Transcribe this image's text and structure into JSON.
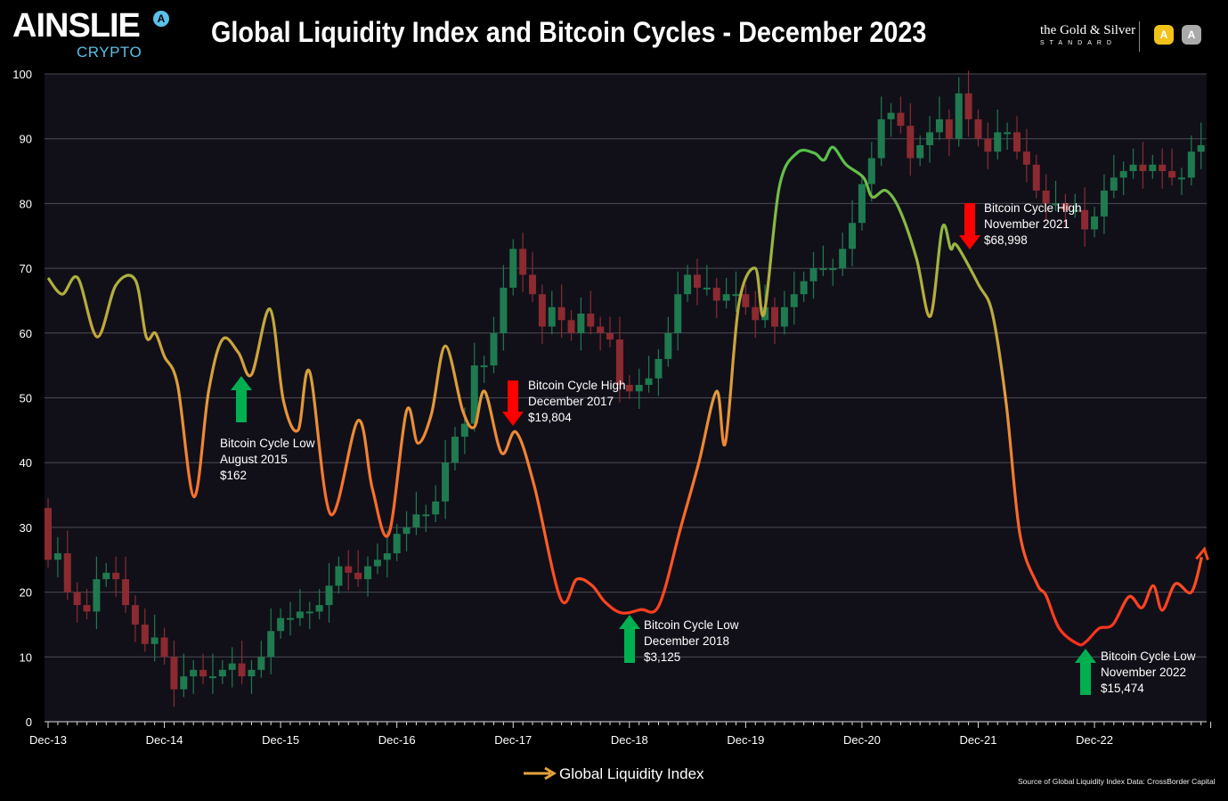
{
  "header": {
    "brand": "AINSLIE",
    "brand_sub": "CRYPTO",
    "brand_mark": "A",
    "title": "Global Liquidity Index and Bitcoin Cycles - December 2023",
    "partner_line1": "the Gold & Silver",
    "partner_line2": "STANDARD",
    "badge1": "A",
    "badge2": "A",
    "badge1_color": "#f2c21b",
    "badge2_color": "#aaaaaa"
  },
  "footer": {
    "source": "Source of Global Liquidity Index Data: CrossBorder Capital"
  },
  "chart_data": {
    "type": "line",
    "title": "Global Liquidity Index and Bitcoin Cycles - December 2023",
    "xlabel": "",
    "ylabel": "",
    "ylim": [
      0,
      100
    ],
    "yticks": [
      "0",
      "10",
      "20",
      "30",
      "40",
      "50",
      "60",
      "70",
      "80",
      "90",
      "100"
    ],
    "xticks": [
      "Dec-13",
      "Dec-14",
      "Dec-15",
      "Dec-16",
      "Dec-17",
      "Dec-18",
      "Dec-19",
      "Dec-20",
      "Dec-21",
      "Dec-22"
    ],
    "xlim": [
      "2013-12",
      "2023-12"
    ],
    "grid": true,
    "legend": {
      "position": "bottom",
      "label": "Global Liquidity Index"
    },
    "colors": {
      "high": "#5fbf4a",
      "mid": "#e6a23c",
      "low": "#ff3b1f",
      "candle_up": "#1f7a4f",
      "candle_down": "#8b2a30",
      "arrow_up": "#00b050",
      "arrow_down": "#ff0000",
      "plot_bg": "#111019"
    },
    "series": [
      {
        "name": "Global Liquidity Index",
        "points": [
          [
            "2013-12-01",
            68.5
          ],
          [
            "2014-01-15",
            66
          ],
          [
            "2014-03-03",
            68.5
          ],
          [
            "2014-05-03",
            59.4
          ],
          [
            "2014-07-01",
            67.4
          ],
          [
            "2014-09-01",
            68.2
          ],
          [
            "2014-10-05",
            59.4
          ],
          [
            "2014-11-03",
            60
          ],
          [
            "2014-12-01",
            56.4
          ],
          [
            "2015-01-12",
            52
          ],
          [
            "2015-03-03",
            34.7
          ],
          [
            "2015-04-18",
            51
          ],
          [
            "2015-06-01",
            59
          ],
          [
            "2015-07-20",
            57
          ],
          [
            "2015-09-01",
            53.6
          ],
          [
            "2015-10-28",
            63.7
          ],
          [
            "2015-12-10",
            49.5
          ],
          [
            "2016-01-25",
            45
          ],
          [
            "2016-03-01",
            54
          ],
          [
            "2016-05-06",
            32
          ],
          [
            "2016-08-01",
            46.5
          ],
          [
            "2016-09-15",
            36
          ],
          [
            "2016-11-06",
            29
          ],
          [
            "2017-01-01",
            48
          ],
          [
            "2017-02-06",
            43
          ],
          [
            "2017-03-18",
            47.5
          ],
          [
            "2017-05-01",
            58
          ],
          [
            "2017-06-25",
            48
          ],
          [
            "2017-08-01",
            45.5
          ],
          [
            "2017-09-03",
            51
          ],
          [
            "2017-10-25",
            41.5
          ],
          [
            "2017-12-10",
            44.7
          ],
          [
            "2018-02-06",
            36.5
          ],
          [
            "2018-04-28",
            19
          ],
          [
            "2018-06-18",
            22
          ],
          [
            "2018-08-06",
            21
          ],
          [
            "2018-09-15",
            18.5
          ],
          [
            "2018-11-06",
            16.8
          ],
          [
            "2019-01-06",
            17.3
          ],
          [
            "2019-03-03",
            18
          ],
          [
            "2019-05-10",
            30
          ],
          [
            "2019-07-06",
            40
          ],
          [
            "2019-09-01",
            51
          ],
          [
            "2019-09-28",
            43
          ],
          [
            "2019-11-10",
            64.5
          ],
          [
            "2020-01-01",
            70
          ],
          [
            "2020-01-28",
            63
          ],
          [
            "2020-03-15",
            82.5
          ],
          [
            "2020-05-10",
            87.8
          ],
          [
            "2020-07-03",
            87.8
          ],
          [
            "2020-08-03",
            86.7
          ],
          [
            "2020-09-01",
            88.7
          ],
          [
            "2020-10-12",
            86
          ],
          [
            "2020-12-06",
            84
          ],
          [
            "2021-01-03",
            81
          ],
          [
            "2021-02-15",
            82
          ],
          [
            "2021-03-28",
            79
          ],
          [
            "2021-05-20",
            71.5
          ],
          [
            "2021-07-03",
            62.6
          ],
          [
            "2021-08-10",
            76.3
          ],
          [
            "2021-09-06",
            73
          ],
          [
            "2021-09-25",
            73.5
          ],
          [
            "2021-12-03",
            67.4
          ],
          [
            "2022-01-15",
            63
          ],
          [
            "2022-02-28",
            49
          ],
          [
            "2022-04-10",
            29
          ],
          [
            "2022-06-03",
            21.3
          ],
          [
            "2022-07-01",
            19.5
          ],
          [
            "2022-08-12",
            14.4
          ],
          [
            "2022-10-10",
            12
          ],
          [
            "2022-11-06",
            12.4
          ],
          [
            "2022-12-15",
            14.4
          ],
          [
            "2023-01-28",
            15
          ],
          [
            "2023-03-18",
            19.3
          ],
          [
            "2023-04-28",
            17.6
          ],
          [
            "2023-06-03",
            21
          ],
          [
            "2023-07-01",
            17.2
          ],
          [
            "2023-08-12",
            21.3
          ],
          [
            "2023-10-01",
            20
          ],
          [
            "2023-11-03",
            25.4
          ]
        ]
      },
      {
        "type": "candlestick",
        "start": "2013-12",
        "first_open": 33,
        "monthly_closes": [
          25,
          26,
          20,
          18,
          17,
          22,
          23,
          22,
          18,
          15,
          12,
          13,
          10,
          5,
          7,
          8,
          7,
          7,
          8,
          9,
          7,
          8,
          10,
          14,
          16,
          16,
          17,
          17,
          18,
          21,
          24,
          23,
          22,
          24,
          25,
          26,
          29,
          30,
          32,
          32,
          34,
          40,
          44,
          46,
          55,
          55,
          60,
          67,
          73,
          69,
          66,
          61,
          64,
          62,
          60,
          63,
          61,
          60,
          59,
          52,
          51,
          52,
          53,
          56,
          60,
          66,
          69,
          67,
          67,
          65,
          66,
          66,
          64,
          62,
          64,
          61,
          64,
          66,
          68,
          70,
          70,
          70,
          73,
          77,
          83,
          87,
          93,
          94,
          92,
          87,
          89,
          91,
          93,
          90,
          97,
          93,
          90,
          88,
          91,
          91,
          88,
          86,
          82,
          80,
          80,
          79,
          79,
          76,
          78,
          82,
          84,
          85,
          86,
          85,
          86,
          85,
          84,
          84,
          88,
          89
        ]
      }
    ],
    "annotations": [
      {
        "date": "2015-08",
        "direction": "up",
        "lines": [
          "Bitcoin Cycle Low",
          "August 2015",
          "$162"
        ]
      },
      {
        "date": "2017-12",
        "direction": "down",
        "lines": [
          "Bitcoin Cycle High",
          "December 2017",
          "$19,804"
        ]
      },
      {
        "date": "2018-12",
        "direction": "up",
        "lines": [
          "Bitcoin Cycle Low",
          "December 2018",
          "$3,125"
        ]
      },
      {
        "date": "2021-11",
        "direction": "down",
        "lines": [
          "Bitcoin Cycle High",
          "November 2021",
          "$68,998"
        ]
      },
      {
        "date": "2022-11",
        "direction": "up",
        "lines": [
          "Bitcoin Cycle Low",
          "November 2022",
          "$15,474"
        ]
      }
    ]
  }
}
